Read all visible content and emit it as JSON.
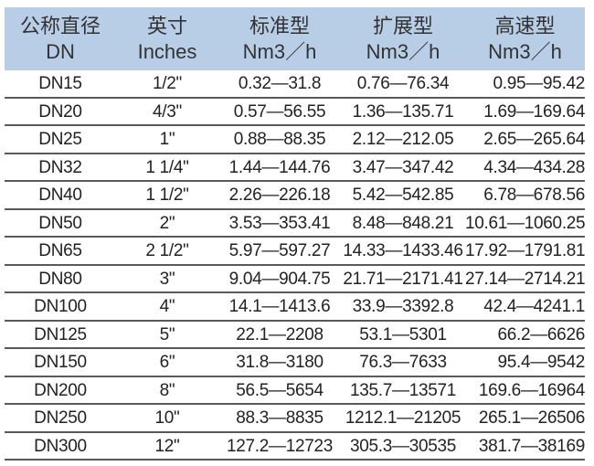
{
  "header": [
    {
      "zh": "公称直径",
      "en": "DN"
    },
    {
      "zh": "英寸",
      "en": "Inches"
    },
    {
      "zh": "标准型",
      "en": "Nm3／h"
    },
    {
      "zh": "扩展型",
      "en": "Nm3／h"
    },
    {
      "zh": "高速型",
      "en": "Nm3／h"
    }
  ],
  "colors": {
    "header_bg": "#b8cde6",
    "row_divider": "#5a5a5a"
  },
  "rows": [
    [
      "DN15",
      "1/2\"",
      "0.32—31.8",
      "0.76—76.34",
      "0.95—95.42"
    ],
    [
      "DN20",
      "4/3\"",
      "0.57—56.55",
      "1.36—135.71",
      "1.69—169.64"
    ],
    [
      "DN25",
      "1\"",
      "0.88—88.35",
      "2.12—212.05",
      "2.65—265.64"
    ],
    [
      "DN32",
      "1 1/4\"",
      "1.44—144.76",
      "3.47—347.42",
      "4.34—434.28"
    ],
    [
      "DN40",
      "1 1/2\"",
      "2.26—226.18",
      "5.42—542.85",
      "6.78—678.56"
    ],
    [
      "DN50",
      "2\"",
      "3.53—353.41",
      "8.48—848.21",
      "10.61—1060.25"
    ],
    [
      "DN65",
      "2 1/2\"",
      "5.97—597.27",
      "14.33—1433.46",
      "17.92—1791.81"
    ],
    [
      "DN80",
      "3\"",
      "9.04—904.75",
      "21.71—2171.41",
      "27.14—2714.21"
    ],
    [
      "DN100",
      "4\"",
      "14.1—1413.6",
      "33.9—3392.8",
      "42.4—4241.1"
    ],
    [
      "DN125",
      "5\"",
      "22.1—2208",
      "53.1—5301",
      "66.2—6626"
    ],
    [
      "DN150",
      "6\"",
      "31.8—3180",
      "76.3—7633",
      "95.4—9542"
    ],
    [
      "DN200",
      "8\"",
      "56.5—5654",
      "135.7—13571",
      "169.6—16964"
    ],
    [
      "DN250",
      "10\"",
      "88.3—8835",
      "1212.1—21205",
      "265.1—26506"
    ],
    [
      "DN300",
      "12\"",
      "127.2—12723",
      "305.3—30535",
      "381.7—38169"
    ]
  ]
}
